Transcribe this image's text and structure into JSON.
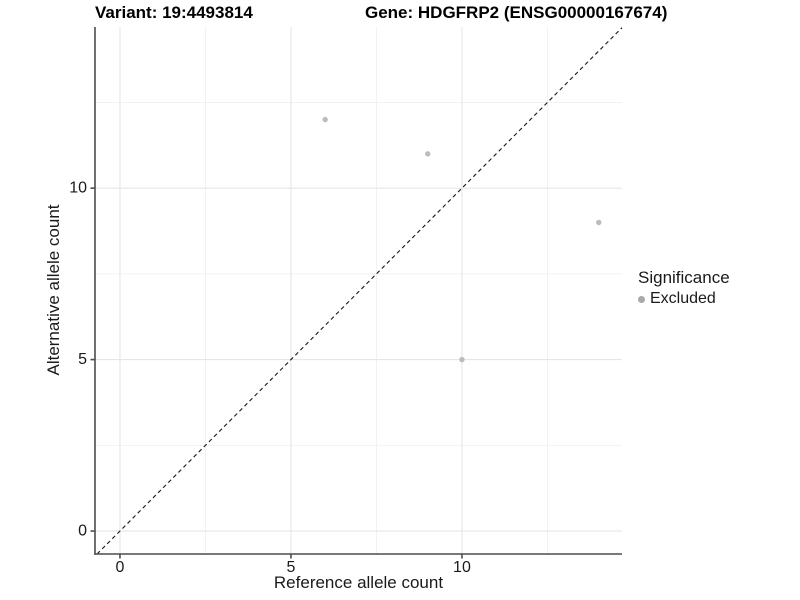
{
  "figure": {
    "title_left": "Variant: 19:4493814",
    "title_right": "Gene: HDGFRP2 (ENSG00000167674)"
  },
  "chart_data": {
    "type": "scatter",
    "title_left": "Variant: 19:4493814",
    "title_right": "Gene: HDGFRP2 (ENSG00000167674)",
    "xlabel": "Reference allele count",
    "ylabel": "Alternative allele count",
    "x_range": [
      -0.73,
      14.68
    ],
    "y_range": [
      -0.67,
      14.7
    ],
    "x_ticks": [
      {
        "value": 0,
        "label": "0"
      },
      {
        "value": 5,
        "label": "5"
      },
      {
        "value": 10,
        "label": "10"
      }
    ],
    "y_ticks": [
      {
        "value": 0,
        "label": "0"
      },
      {
        "value": 5,
        "label": "5"
      },
      {
        "value": 10,
        "label": "10"
      }
    ],
    "x_minor": [
      2.5,
      7.5,
      12.5
    ],
    "y_minor": [
      2.5,
      7.5,
      12.5
    ],
    "grid": true,
    "identity_line": {
      "style": "dashed",
      "slope": 1,
      "intercept": 0,
      "color": "#1f1f1f"
    },
    "series": [
      {
        "name": "Excluded",
        "color": "#bcbcbc",
        "point_radius": 2.7,
        "points": [
          {
            "x": 6,
            "y": 12
          },
          {
            "x": 9,
            "y": 11
          },
          {
            "x": 14,
            "y": 9
          },
          {
            "x": 10,
            "y": 5
          }
        ]
      }
    ],
    "legend": {
      "title": "Significance",
      "position": "right",
      "items": [
        {
          "label": "Excluded",
          "color": "#a9a9a9"
        }
      ]
    },
    "colors": {
      "background": "#ffffff",
      "axis": "#4d4d4d",
      "grid_major": "#e6e6e6",
      "grid_minor": "#f0f0f0",
      "text": "#1a1a1a"
    }
  }
}
